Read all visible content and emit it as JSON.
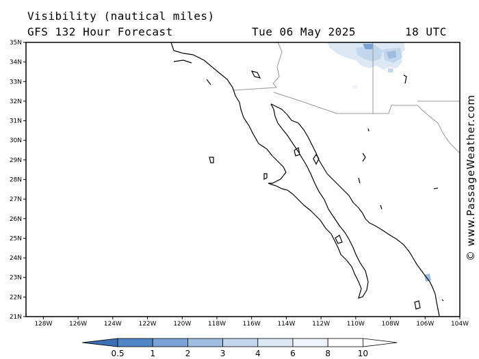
{
  "title": {
    "variable": "Visibility (nautical miles)",
    "model": "GFS 132 Hour Forecast",
    "date": "Tue 06 May 2025",
    "time": "18 UTC"
  },
  "credit": "© www.PassageWeather.com",
  "map": {
    "lat_min": 21,
    "lat_max": 35,
    "lon_min": -129,
    "lon_max": -104,
    "lat_labels": [
      "35N",
      "34N",
      "33N",
      "32N",
      "31N",
      "30N",
      "29N",
      "28N",
      "27N",
      "26N",
      "25N",
      "24N",
      "23N",
      "22N",
      "21N"
    ],
    "lon_labels": [
      "128W",
      "126W",
      "124W",
      "122W",
      "120W",
      "118W",
      "116W",
      "114W",
      "112W",
      "110W",
      "108W",
      "106W",
      "104W"
    ]
  },
  "colorbar": {
    "labels": [
      "0.5",
      "1",
      "2",
      "3",
      "4",
      "6",
      "8",
      "10"
    ],
    "colors": [
      "#3a6fb6",
      "#4f86c6",
      "#7aa3d4",
      "#9fbde0",
      "#c2d6ec",
      "#dde8f5",
      "#eef4fb",
      "#ffffff"
    ]
  }
}
